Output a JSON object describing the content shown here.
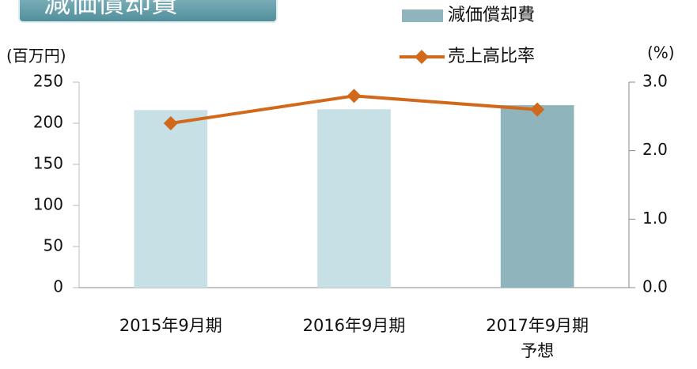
{
  "chart_data": {
    "type": "bar_line",
    "title": "減価償却費",
    "y_label": "(百万円)",
    "y2_label": "(%)",
    "categories": [
      "2015年9月期",
      "2016年9月期",
      "2017年9月期\n予想"
    ],
    "series": [
      {
        "name": "減価償却費",
        "type": "bar",
        "colors": [
          "#c6e0e5",
          "#c6e0e5",
          "#8fb4bc"
        ],
        "color": "#8fb4bc",
        "values": [
          216,
          217,
          222
        ]
      },
      {
        "name": "売上高比率",
        "type": "line",
        "axis": "y2",
        "color": "#d2691a",
        "values": [
          2.4,
          2.8,
          2.6
        ]
      }
    ],
    "ylim": [
      0,
      250
    ],
    "yticks": [
      0,
      50,
      100,
      150,
      200,
      250
    ],
    "y2lim": [
      0,
      3
    ],
    "y2ticks": [
      {
        "value": 0,
        "label": "0.0"
      },
      {
        "value": 1,
        "label": "1.0"
      },
      {
        "value": 2,
        "label": "2.0"
      },
      {
        "value": 3,
        "label": "3.0"
      }
    ],
    "grid": false
  }
}
